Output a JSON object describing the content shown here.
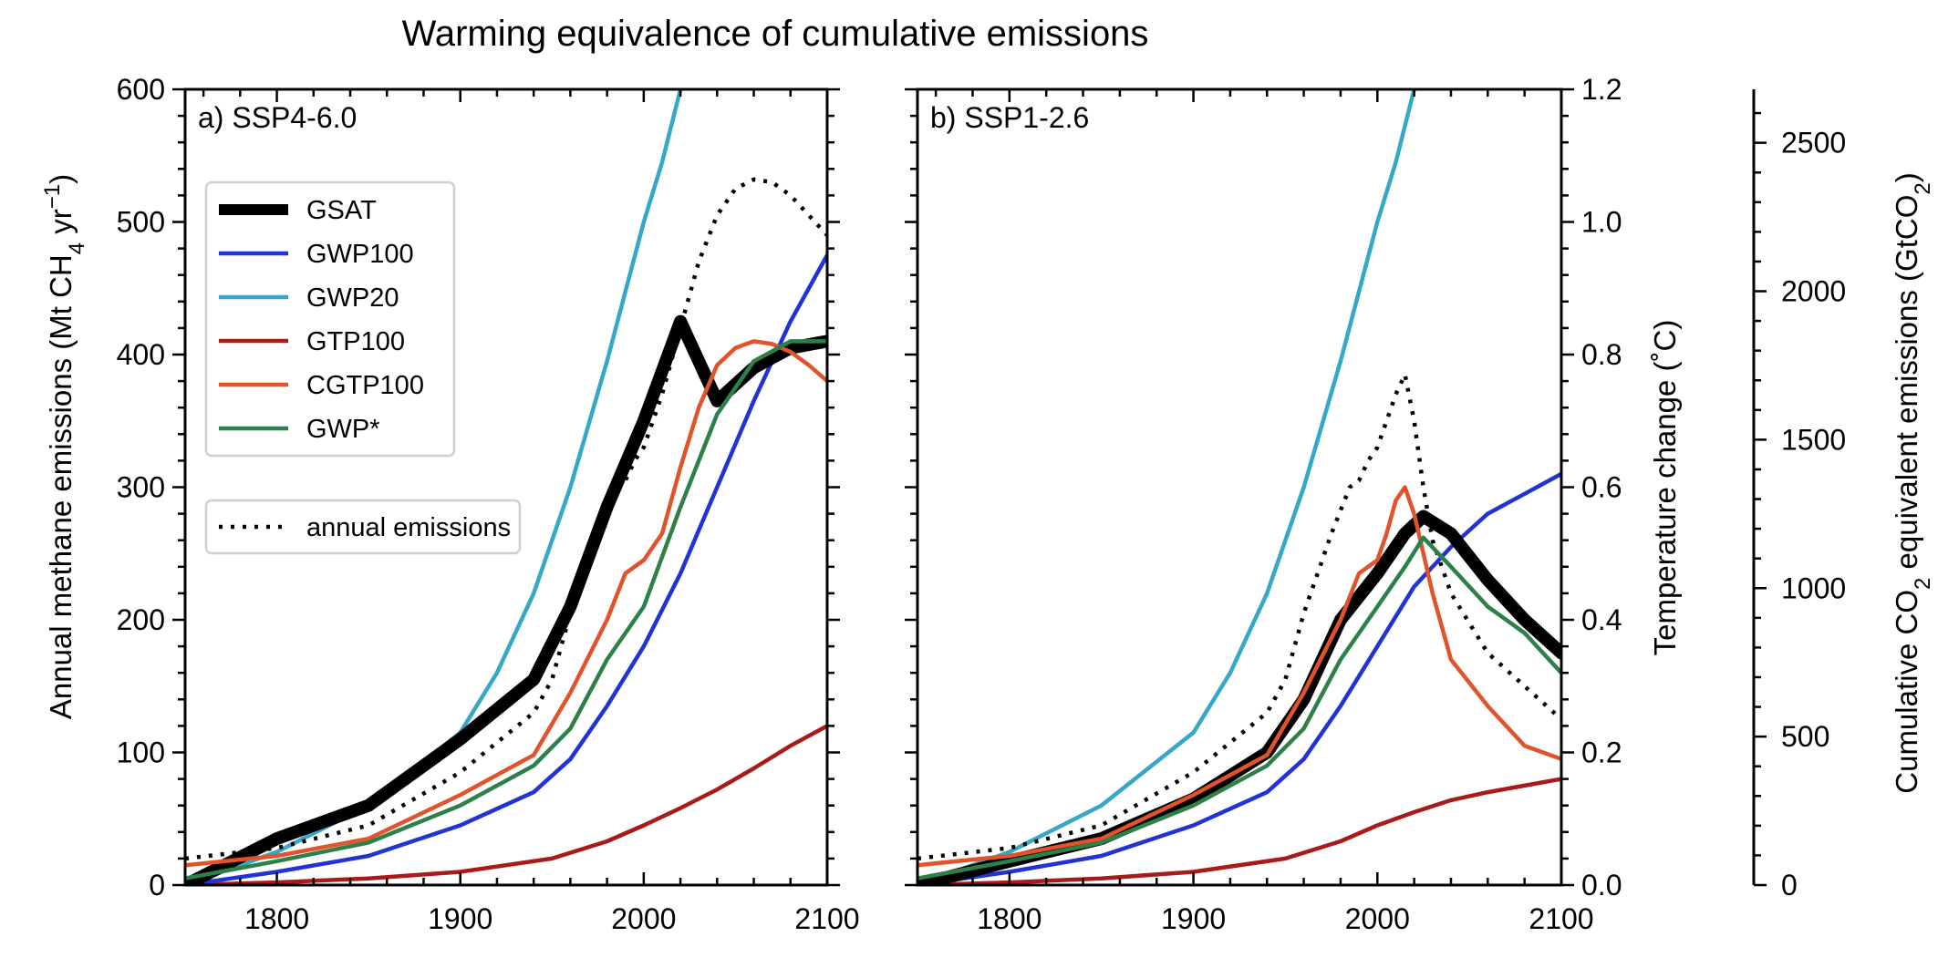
{
  "title": "Warming equivalence of cumulative emissions",
  "colors": {
    "GSAT": "#000000",
    "GWP100": "#2233d6",
    "GWP20": "#35a8c8",
    "GTP100": "#a91a1a",
    "CGTP100": "#e0532b",
    "GWP*": "#2e8049",
    "annual emissions": "#000000"
  },
  "legend": {
    "items": [
      "GSAT",
      "GWP100",
      "GWP20",
      "GTP100",
      "CGTP100",
      "GWP*"
    ],
    "annual": "annual emissions"
  },
  "axes": {
    "left_ylabel_pre": "Annual methane emissions (Mt CH",
    "left_ylabel_sub": "4",
    "left_ylabel_mid": " yr",
    "left_ylabel_sup": "−1",
    "left_ylabel_post": ")",
    "right_ylabel": "Temperature change (",
    "right_ylabel_deg": "˚",
    "right_ylabel_post": "C)",
    "far_ylabel_pre": "Cumulative CO",
    "far_ylabel_sub": "2",
    "far_ylabel_mid": " equivalent emissions (GtCO",
    "far_ylabel_sub2": "2",
    "far_ylabel_post": ")"
  },
  "chart_data": [
    {
      "type": "line",
      "panel": "a) SSP4-6.0",
      "xlim": [
        1750,
        2100
      ],
      "ylim_left": [
        0,
        600
      ],
      "ylim_temp": [
        0,
        1.2
      ],
      "ylim_cum": [
        0,
        2680
      ],
      "x_ticks": [
        1800,
        1900,
        2000,
        2100
      ],
      "y_ticks": [
        0,
        100,
        200,
        300,
        400,
        500,
        600
      ],
      "temp_ticks": [
        0.0,
        0.2,
        0.4,
        0.6,
        0.8,
        1.0,
        1.2
      ],
      "cum_ticks": [
        0,
        500,
        1000,
        1500,
        2000,
        2500
      ],
      "series": [
        {
          "name": "GSAT",
          "axis": "temp",
          "x": [
            1750,
            1800,
            1850,
            1900,
            1940,
            1960,
            1980,
            2000,
            2020,
            2040,
            2060,
            2080,
            2100
          ],
          "values": [
            0.0,
            0.07,
            0.12,
            0.22,
            0.31,
            0.42,
            0.57,
            0.7,
            0.85,
            0.73,
            0.78,
            0.81,
            0.82
          ]
        },
        {
          "name": "GWP100",
          "axis": "left",
          "x": [
            1750,
            1800,
            1850,
            1900,
            1940,
            1960,
            1980,
            2000,
            2020,
            2040,
            2060,
            2080,
            2100
          ],
          "values": [
            0,
            10,
            22,
            45,
            70,
            95,
            135,
            180,
            235,
            300,
            365,
            425,
            475
          ]
        },
        {
          "name": "GWP20",
          "axis": "left",
          "x": [
            1750,
            1800,
            1850,
            1900,
            1920,
            1940,
            1960,
            1980,
            2000,
            2010,
            2020
          ],
          "values": [
            0,
            25,
            60,
            115,
            160,
            220,
            300,
            395,
            500,
            545,
            600
          ]
        },
        {
          "name": "GTP100",
          "axis": "left",
          "x": [
            1750,
            1800,
            1850,
            1900,
            1950,
            1980,
            2000,
            2020,
            2040,
            2060,
            2080,
            2100
          ],
          "values": [
            0,
            2,
            5,
            10,
            20,
            33,
            45,
            58,
            72,
            88,
            105,
            120
          ]
        },
        {
          "name": "CGTP100",
          "axis": "left",
          "x": [
            1750,
            1800,
            1850,
            1900,
            1940,
            1960,
            1980,
            1990,
            2000,
            2005,
            2010,
            2020,
            2030,
            2040,
            2050,
            2060,
            2070,
            2080,
            2090,
            2100
          ],
          "values": [
            15,
            22,
            35,
            68,
            98,
            145,
            200,
            235,
            245,
            255,
            265,
            315,
            360,
            392,
            405,
            410,
            408,
            402,
            392,
            380
          ]
        },
        {
          "name": "GWP*",
          "axis": "left",
          "x": [
            1750,
            1800,
            1850,
            1900,
            1940,
            1960,
            1980,
            2000,
            2020,
            2040,
            2060,
            2080,
            2100
          ],
          "values": [
            5,
            18,
            32,
            60,
            90,
            118,
            170,
            210,
            285,
            355,
            395,
            410,
            410
          ]
        },
        {
          "name": "annual emissions",
          "axis": "left",
          "x": [
            1750,
            1800,
            1850,
            1900,
            1940,
            1950,
            1960,
            1975,
            1985,
            1990,
            1995,
            2000,
            2010,
            2020,
            2030,
            2040,
            2050,
            2060,
            2070,
            2080,
            2090,
            2100
          ],
          "values": [
            20,
            28,
            45,
            85,
            130,
            155,
            205,
            265,
            300,
            305,
            320,
            330,
            370,
            420,
            470,
            505,
            525,
            532,
            530,
            520,
            505,
            490
          ]
        }
      ]
    },
    {
      "type": "line",
      "panel": "b) SSP1-2.6",
      "xlim": [
        1750,
        2100
      ],
      "ylim_left": [
        0,
        600
      ],
      "ylim_temp": [
        0,
        1.2
      ],
      "ylim_cum": [
        0,
        2680
      ],
      "x_ticks": [
        1800,
        1900,
        2000,
        2100
      ],
      "temp_ticks": [
        0.0,
        0.2,
        0.4,
        0.6,
        0.8,
        1.0,
        1.2
      ],
      "series": [
        {
          "name": "GSAT",
          "axis": "left",
          "x": [
            1750,
            1800,
            1850,
            1900,
            1940,
            1960,
            1980,
            2000,
            2015,
            2025,
            2040,
            2060,
            2080,
            2100
          ],
          "values": [
            0,
            18,
            35,
            65,
            100,
            140,
            200,
            235,
            265,
            278,
            265,
            230,
            200,
            175
          ]
        },
        {
          "name": "GWP100",
          "axis": "left",
          "x": [
            1750,
            1800,
            1850,
            1900,
            1940,
            1960,
            1980,
            2000,
            2020,
            2040,
            2060,
            2080,
            2100
          ],
          "values": [
            0,
            10,
            22,
            45,
            70,
            95,
            135,
            180,
            225,
            255,
            280,
            295,
            310
          ]
        },
        {
          "name": "GWP20",
          "axis": "left",
          "x": [
            1750,
            1800,
            1850,
            1900,
            1920,
            1940,
            1960,
            1980,
            2000,
            2010,
            2020
          ],
          "values": [
            0,
            25,
            60,
            115,
            160,
            220,
            300,
            395,
            500,
            545,
            600
          ]
        },
        {
          "name": "GTP100",
          "axis": "left",
          "x": [
            1750,
            1800,
            1850,
            1900,
            1950,
            1980,
            2000,
            2020,
            2040,
            2060,
            2080,
            2100
          ],
          "values": [
            0,
            2,
            5,
            10,
            20,
            33,
            45,
            55,
            64,
            70,
            75,
            80
          ]
        },
        {
          "name": "CGTP100",
          "axis": "left",
          "x": [
            1750,
            1800,
            1850,
            1900,
            1940,
            1960,
            1980,
            1990,
            2000,
            2005,
            2010,
            2015,
            2020,
            2030,
            2040,
            2060,
            2080,
            2100
          ],
          "values": [
            15,
            22,
            35,
            68,
            98,
            145,
            200,
            235,
            245,
            265,
            290,
            300,
            280,
            220,
            170,
            135,
            105,
            95
          ]
        },
        {
          "name": "GWP*",
          "axis": "left",
          "x": [
            1750,
            1800,
            1850,
            1900,
            1940,
            1960,
            1980,
            2000,
            2015,
            2025,
            2040,
            2060,
            2080,
            2100
          ],
          "values": [
            5,
            18,
            32,
            60,
            90,
            118,
            170,
            210,
            240,
            262,
            240,
            210,
            190,
            160
          ]
        },
        {
          "name": "annual emissions",
          "axis": "left",
          "x": [
            1750,
            1800,
            1850,
            1900,
            1940,
            1950,
            1960,
            1975,
            1985,
            1990,
            1995,
            2000,
            2005,
            2010,
            2015,
            2020,
            2025,
            2030,
            2040,
            2060,
            2080,
            2100
          ],
          "values": [
            20,
            28,
            45,
            85,
            130,
            155,
            205,
            265,
            300,
            305,
            320,
            330,
            350,
            370,
            385,
            350,
            300,
            260,
            220,
            175,
            150,
            125
          ]
        }
      ]
    }
  ]
}
